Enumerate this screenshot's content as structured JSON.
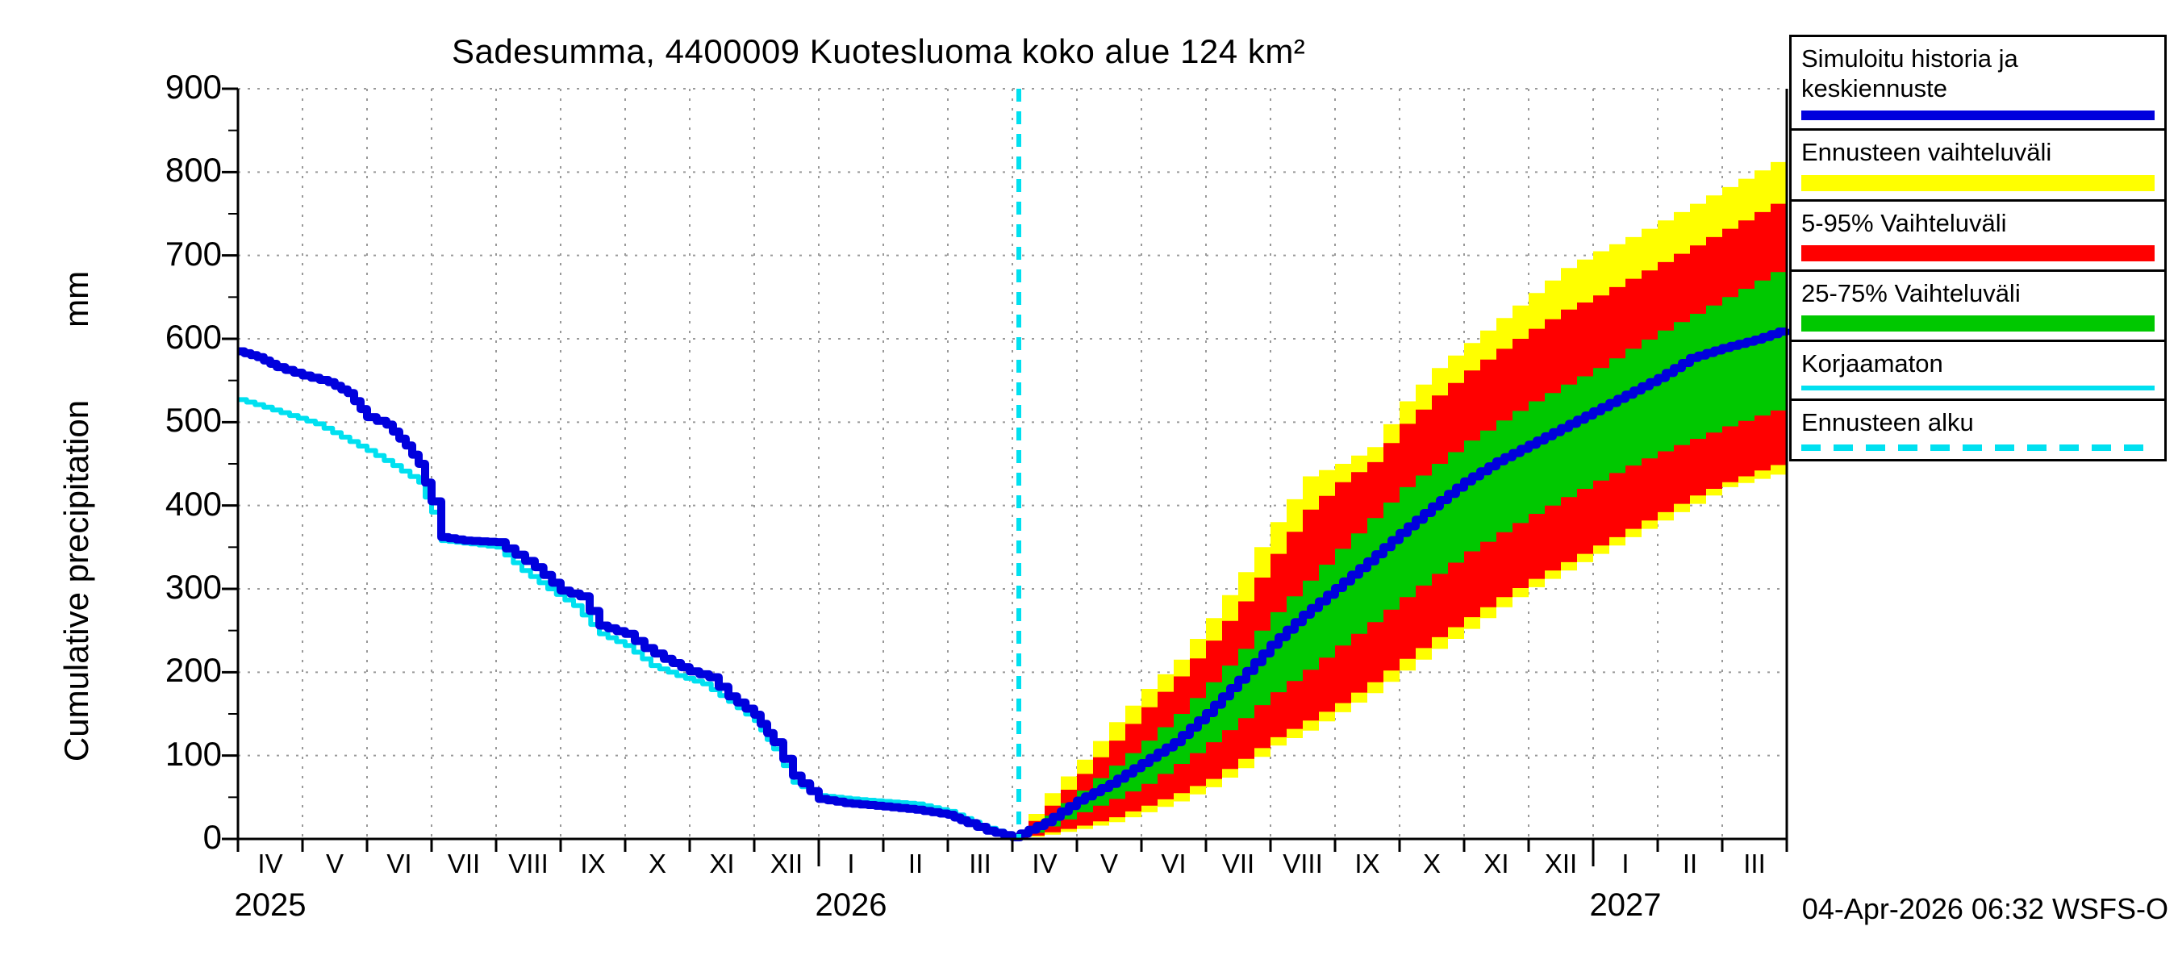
{
  "footer": {
    "timestamp": "04-Apr-2026 06:32 WSFS-O"
  },
  "chart_data": {
    "type": "line",
    "title": "Sadesumma, 4400009 Kuotesluoma koko alue 124 km²",
    "ylabel": "Cumulative precipitation",
    "yunit": "mm",
    "ylim": [
      0,
      900
    ],
    "yticks": [
      0,
      100,
      200,
      300,
      400,
      500,
      600,
      700,
      800,
      900
    ],
    "grid": true,
    "months": [
      "IV",
      "V",
      "VI",
      "VII",
      "VIII",
      "IX",
      "X",
      "XI",
      "XII",
      "I",
      "II",
      "III",
      "IV",
      "V",
      "VI",
      "VII",
      "VIII",
      "IX",
      "X",
      "XI",
      "XII",
      "I",
      "II",
      "III"
    ],
    "year_labels": [
      {
        "label": "2025",
        "at_month": 0.5
      },
      {
        "label": "2026",
        "at_month": 9.5
      },
      {
        "label": "2027",
        "at_month": 21.5
      }
    ],
    "forecast_line": {
      "month": 12.1,
      "color": "#00e0f0"
    },
    "legend_position": "top-right",
    "legend": [
      {
        "label": "Simuloitu historia ja keskiennuste",
        "color": "#0000dd",
        "style": "line-thick"
      },
      {
        "label": "Ennusteen vaihteluväli",
        "color": "#ffff00",
        "style": "band"
      },
      {
        "label": "5-95% Vaihteluväli",
        "color": "#ff0000",
        "style": "band"
      },
      {
        "label": "25-75% Vaihteluväli",
        "color": "#00c800",
        "style": "band"
      },
      {
        "label": "Korjaamaton",
        "color": "#00e0f0",
        "style": "line-thin"
      },
      {
        "label": "Ennusteen alku",
        "color": "#00e0f0",
        "style": "dashed"
      }
    ],
    "bands": [
      {
        "name": "ennusteen-vaihteluvali",
        "color": "#ffff00",
        "upper": [
          [
            12,
            5
          ],
          [
            12.5,
            55
          ],
          [
            13,
            95
          ],
          [
            13.5,
            140
          ],
          [
            14,
            180
          ],
          [
            14.5,
            215
          ],
          [
            15,
            265
          ],
          [
            15.5,
            320
          ],
          [
            16,
            380
          ],
          [
            16.5,
            435
          ],
          [
            17,
            450
          ],
          [
            17.5,
            470
          ],
          [
            18,
            525
          ],
          [
            18.5,
            565
          ],
          [
            19,
            595
          ],
          [
            19.5,
            625
          ],
          [
            20,
            655
          ],
          [
            20.5,
            685
          ],
          [
            21,
            705
          ],
          [
            21.5,
            722
          ],
          [
            22,
            742
          ],
          [
            22.5,
            762
          ],
          [
            23,
            782
          ],
          [
            23.5,
            802
          ],
          [
            24,
            822
          ]
        ],
        "lower": [
          [
            12,
            0
          ],
          [
            12.5,
            5
          ],
          [
            13,
            12
          ],
          [
            13.5,
            20
          ],
          [
            14,
            32
          ],
          [
            14.5,
            45
          ],
          [
            15,
            62
          ],
          [
            15.5,
            85
          ],
          [
            16,
            112
          ],
          [
            16.5,
            130
          ],
          [
            17,
            152
          ],
          [
            17.5,
            175
          ],
          [
            18,
            202
          ],
          [
            18.5,
            228
          ],
          [
            19,
            252
          ],
          [
            19.5,
            278
          ],
          [
            20,
            302
          ],
          [
            20.5,
            322
          ],
          [
            21,
            342
          ],
          [
            21.5,
            362
          ],
          [
            22,
            382
          ],
          [
            22.5,
            402
          ],
          [
            23,
            422
          ],
          [
            23.5,
            432
          ],
          [
            24,
            442
          ]
        ]
      },
      {
        "name": "5-95-vaihteluvali",
        "color": "#ff0000",
        "upper": [
          [
            12,
            3
          ],
          [
            12.5,
            40
          ],
          [
            13,
            78
          ],
          [
            13.5,
            118
          ],
          [
            14,
            158
          ],
          [
            14.5,
            195
          ],
          [
            15,
            238
          ],
          [
            15.5,
            285
          ],
          [
            16,
            342
          ],
          [
            16.5,
            395
          ],
          [
            17,
            428
          ],
          [
            17.5,
            452
          ],
          [
            18,
            498
          ],
          [
            18.5,
            532
          ],
          [
            19,
            562
          ],
          [
            19.5,
            588
          ],
          [
            20,
            612
          ],
          [
            20.5,
            635
          ],
          [
            21,
            652
          ],
          [
            21.5,
            672
          ],
          [
            22,
            692
          ],
          [
            22.5,
            712
          ],
          [
            23,
            732
          ],
          [
            23.5,
            752
          ],
          [
            24,
            772
          ]
        ],
        "lower": [
          [
            12,
            0
          ],
          [
            12.5,
            8
          ],
          [
            13,
            16
          ],
          [
            13.5,
            26
          ],
          [
            14,
            40
          ],
          [
            14.5,
            55
          ],
          [
            15,
            72
          ],
          [
            15.5,
            96
          ],
          [
            16,
            122
          ],
          [
            16.5,
            142
          ],
          [
            17,
            163
          ],
          [
            17.5,
            188
          ],
          [
            18,
            216
          ],
          [
            18.5,
            242
          ],
          [
            19,
            266
          ],
          [
            19.5,
            290
          ],
          [
            20,
            312
          ],
          [
            20.5,
            332
          ],
          [
            21,
            352
          ],
          [
            21.5,
            372
          ],
          [
            22,
            392
          ],
          [
            22.5,
            412
          ],
          [
            23,
            428
          ],
          [
            23.5,
            442
          ],
          [
            24,
            455
          ]
        ]
      },
      {
        "name": "25-75-vaihteluvali",
        "color": "#00c800",
        "upper": [
          [
            12,
            1
          ],
          [
            12.5,
            28
          ],
          [
            13,
            58
          ],
          [
            13.5,
            88
          ],
          [
            14,
            118
          ],
          [
            14.5,
            150
          ],
          [
            15,
            188
          ],
          [
            15.5,
            228
          ],
          [
            16,
            272
          ],
          [
            16.5,
            310
          ],
          [
            17,
            348
          ],
          [
            17.5,
            385
          ],
          [
            18,
            422
          ],
          [
            18.5,
            450
          ],
          [
            19,
            478
          ],
          [
            19.5,
            502
          ],
          [
            20,
            525
          ],
          [
            20.5,
            545
          ],
          [
            21,
            565
          ],
          [
            21.5,
            588
          ],
          [
            22,
            610
          ],
          [
            22.5,
            630
          ],
          [
            23,
            650
          ],
          [
            23.5,
            670
          ],
          [
            24,
            690
          ]
        ],
        "lower": [
          [
            12,
            0
          ],
          [
            12.5,
            15
          ],
          [
            13,
            32
          ],
          [
            13.5,
            48
          ],
          [
            14,
            66
          ],
          [
            14.5,
            90
          ],
          [
            15,
            116
          ],
          [
            15.5,
            145
          ],
          [
            16,
            176
          ],
          [
            16.5,
            203
          ],
          [
            17,
            232
          ],
          [
            17.5,
            260
          ],
          [
            18,
            290
          ],
          [
            18.5,
            318
          ],
          [
            19,
            345
          ],
          [
            19.5,
            368
          ],
          [
            20,
            390
          ],
          [
            20.5,
            410
          ],
          [
            21,
            430
          ],
          [
            21.5,
            448
          ],
          [
            22,
            465
          ],
          [
            22.5,
            480
          ],
          [
            23,
            495
          ],
          [
            23.5,
            508
          ],
          [
            24,
            520
          ]
        ]
      }
    ],
    "series": [
      {
        "name": "korjaamaton",
        "role": "uncorrected",
        "color": "#00e0f0",
        "points": [
          [
            0,
            527
          ],
          [
            0.4,
            518
          ],
          [
            0.8,
            508
          ],
          [
            1.2,
            498
          ],
          [
            1.6,
            482
          ],
          [
            2,
            466
          ],
          [
            2.4,
            448
          ],
          [
            2.8,
            428
          ],
          [
            3,
            392
          ],
          [
            3.15,
            358
          ],
          [
            3.6,
            354
          ],
          [
            4,
            350
          ],
          [
            4.4,
            322
          ],
          [
            4.8,
            300
          ],
          [
            5.2,
            280
          ],
          [
            5.6,
            246
          ],
          [
            6,
            232
          ],
          [
            6.4,
            208
          ],
          [
            6.8,
            196
          ],
          [
            7.2,
            186
          ],
          [
            7.6,
            165
          ],
          [
            8,
            142
          ],
          [
            8.3,
            108
          ],
          [
            8.6,
            68
          ],
          [
            9,
            52
          ],
          [
            9.5,
            48
          ],
          [
            10,
            45
          ],
          [
            10.5,
            42
          ],
          [
            11,
            33
          ],
          [
            11.5,
            16
          ],
          [
            12,
            3
          ]
        ]
      },
      {
        "name": "simuloitu-historia-ja-keskiennuste",
        "role": "median",
        "color": "#0000dd",
        "points": [
          [
            0,
            585
          ],
          [
            0.3,
            578
          ],
          [
            0.6,
            566
          ],
          [
            1,
            556
          ],
          [
            1.4,
            548
          ],
          [
            1.7,
            535
          ],
          [
            2,
            506
          ],
          [
            2.3,
            497
          ],
          [
            2.6,
            472
          ],
          [
            2.8,
            450
          ],
          [
            3,
            405
          ],
          [
            3.15,
            362
          ],
          [
            3.5,
            358
          ],
          [
            4,
            356
          ],
          [
            4.3,
            341
          ],
          [
            4.6,
            326
          ],
          [
            5,
            298
          ],
          [
            5.3,
            291
          ],
          [
            5.6,
            256
          ],
          [
            6,
            246
          ],
          [
            6.3,
            229
          ],
          [
            6.6,
            216
          ],
          [
            7,
            201
          ],
          [
            7.3,
            194
          ],
          [
            7.6,
            171
          ],
          [
            8,
            149
          ],
          [
            8.3,
            116
          ],
          [
            8.6,
            76
          ],
          [
            9,
            48
          ],
          [
            9.4,
            43
          ],
          [
            10,
            39
          ],
          [
            10.5,
            35
          ],
          [
            11,
            29
          ],
          [
            11.3,
            19
          ],
          [
            11.6,
            10
          ],
          [
            12,
            2
          ],
          [
            12.5,
            20
          ],
          [
            13,
            46
          ],
          [
            13.5,
            66
          ],
          [
            14,
            91
          ],
          [
            14.5,
            116
          ],
          [
            15,
            151
          ],
          [
            15.5,
            191
          ],
          [
            16,
            233
          ],
          [
            16.5,
            269
          ],
          [
            17,
            301
          ],
          [
            17.5,
            333
          ],
          [
            18,
            367
          ],
          [
            18.5,
            399
          ],
          [
            19,
            429
          ],
          [
            19.5,
            453
          ],
          [
            20,
            473
          ],
          [
            20.5,
            493
          ],
          [
            21,
            513
          ],
          [
            21.5,
            533
          ],
          [
            22,
            553
          ],
          [
            22.5,
            577
          ],
          [
            23,
            589
          ],
          [
            23.5,
            599
          ],
          [
            24,
            612
          ]
        ]
      }
    ]
  }
}
